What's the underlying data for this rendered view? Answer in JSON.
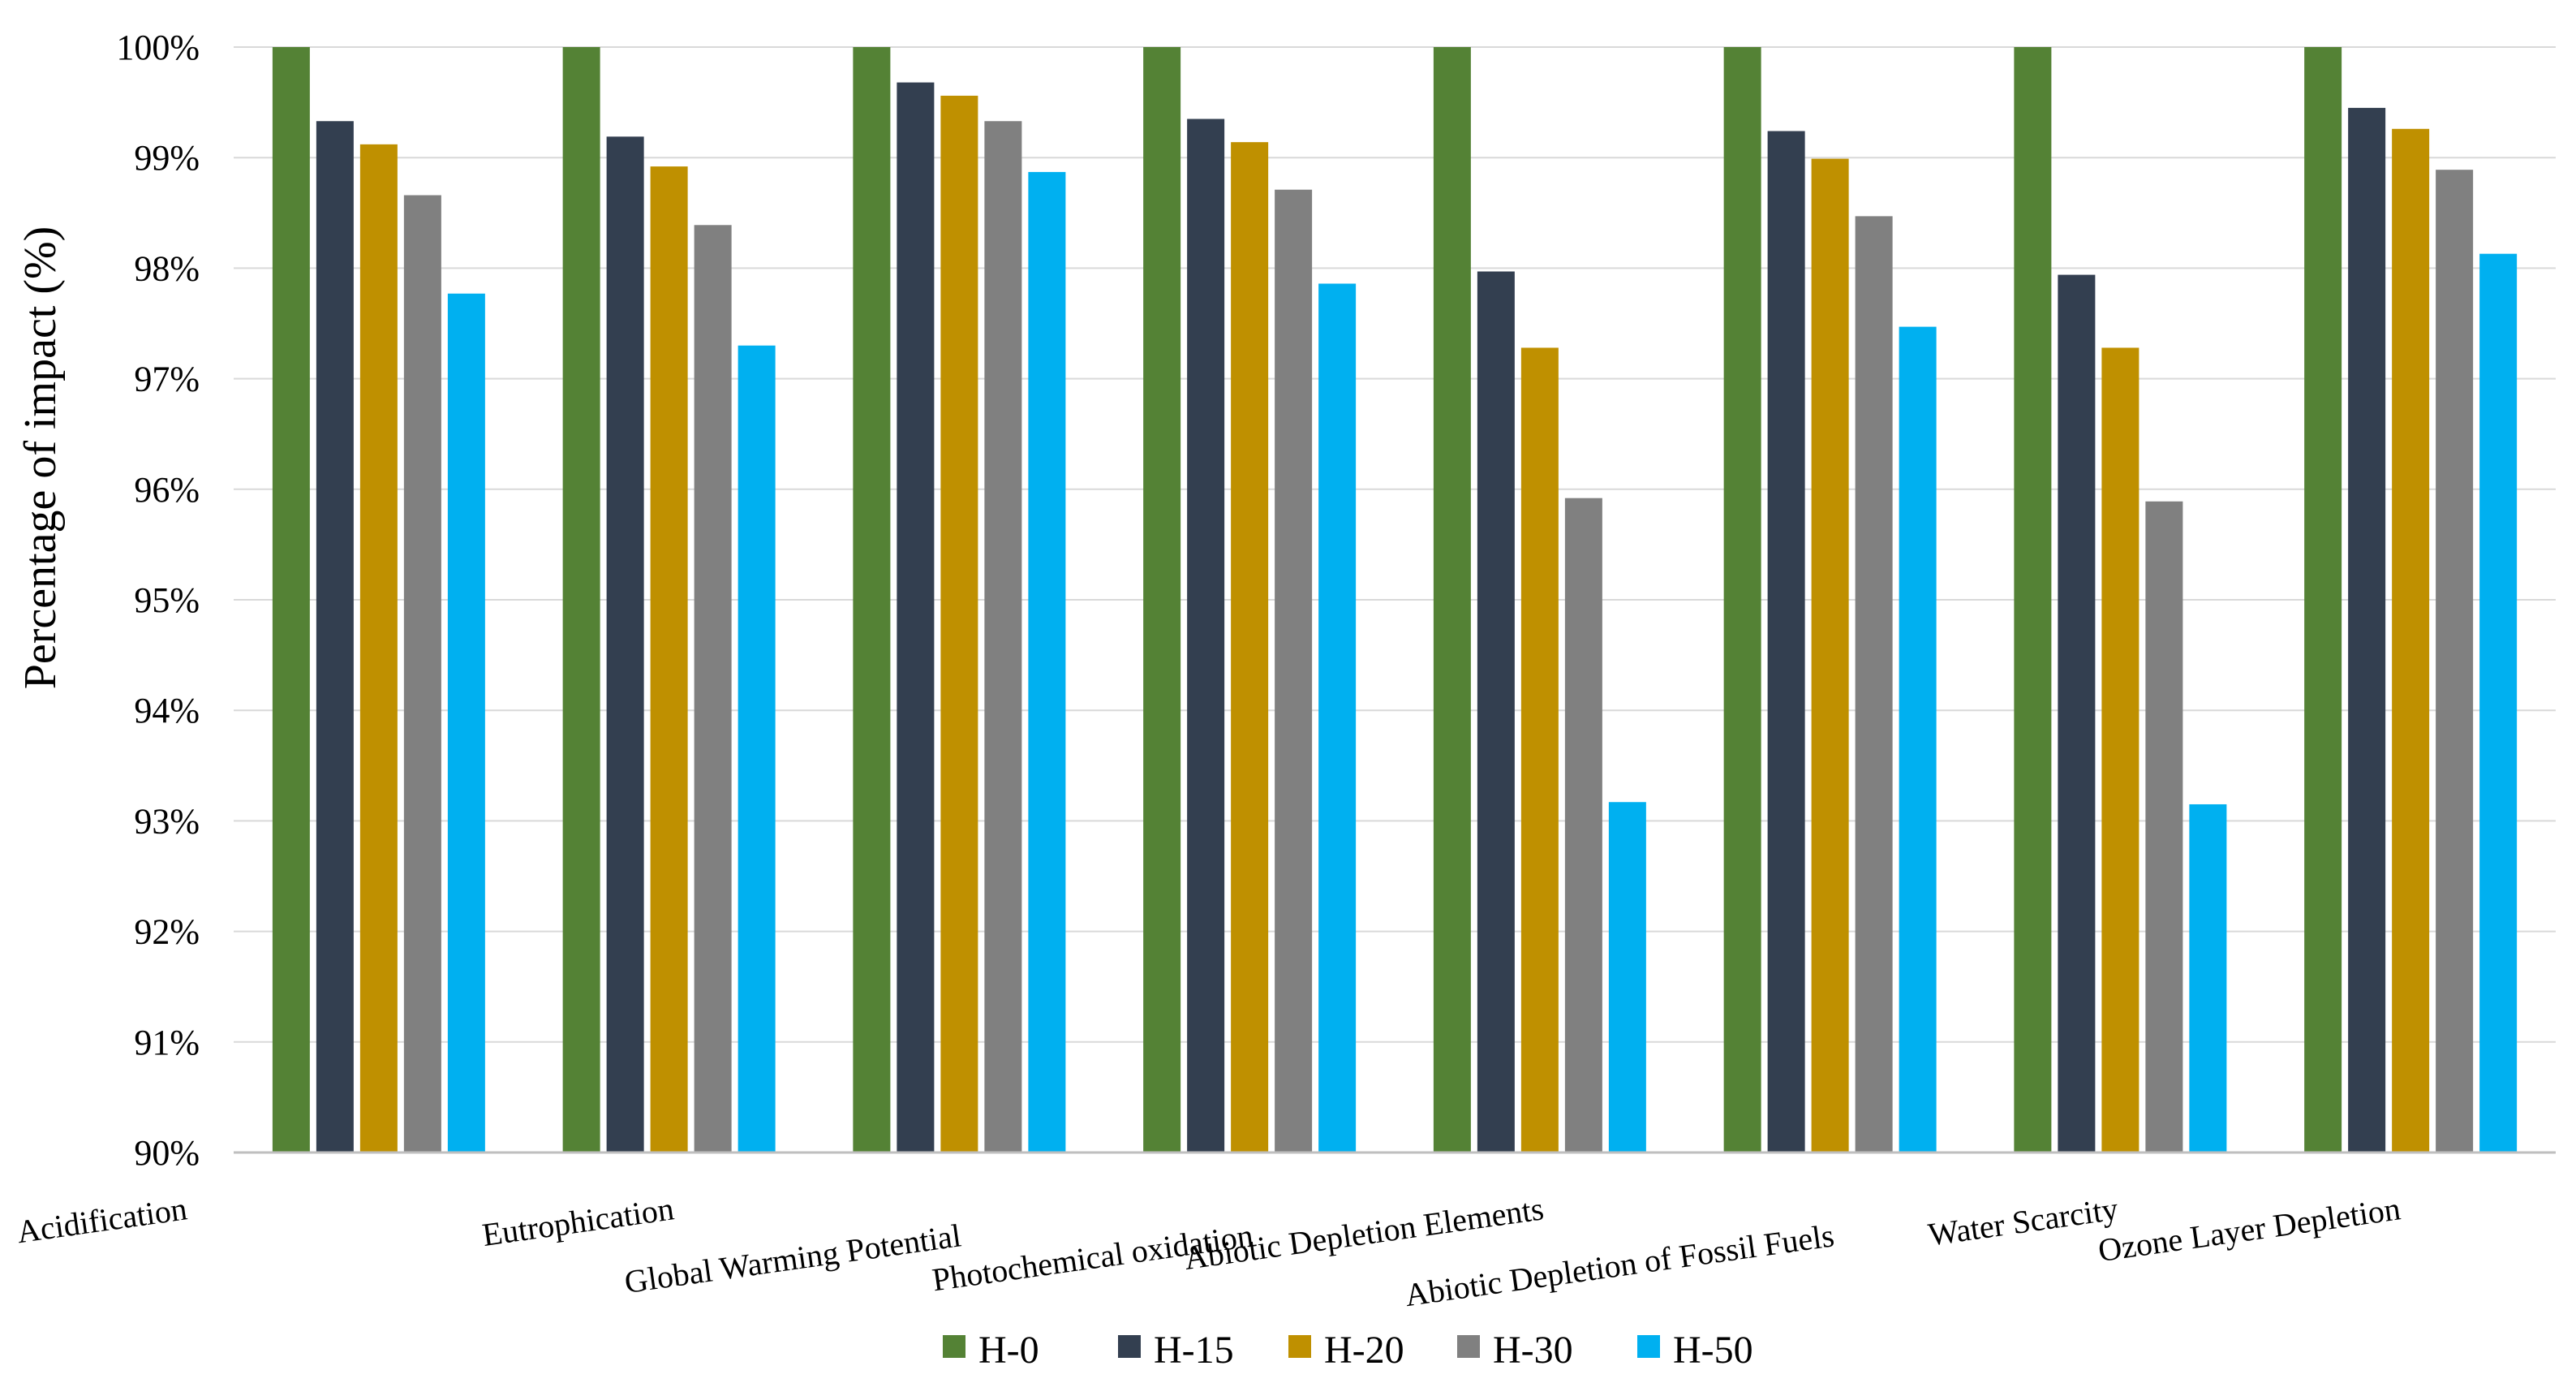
{
  "chart_data": {
    "type": "bar",
    "title": "",
    "xlabel": "",
    "ylabel": "Percentage of impact (%)",
    "ylim": [
      90,
      100
    ],
    "y_tick_values": [
      90,
      91,
      92,
      93,
      94,
      95,
      96,
      97,
      98,
      99,
      100
    ],
    "y_tick_labels": [
      "90%",
      "91%",
      "92%",
      "93%",
      "94%",
      "95%",
      "96%",
      "97%",
      "98%",
      "99%",
      "100%"
    ],
    "grid": true,
    "legend_position": "bottom",
    "categories": [
      "Acidification",
      "Eutrophication",
      "Global Warming Potential",
      "Photochemical oxidation",
      "Abiotic Depletion Elements",
      "Abiotic Depletion of Fossil Fuels",
      "Water Scarcity",
      "Ozone Layer Depletion"
    ],
    "series": [
      {
        "name": "H-0",
        "color": "#548235",
        "values": [
          100,
          100,
          100,
          100,
          100,
          100,
          100,
          100
        ]
      },
      {
        "name": "H-15",
        "color": "#333F50",
        "values": [
          99.33,
          99.19,
          99.68,
          99.35,
          97.97,
          99.24,
          97.94,
          99.45
        ]
      },
      {
        "name": "H-20",
        "color": "#BF9000",
        "values": [
          99.12,
          98.92,
          99.56,
          99.14,
          97.28,
          98.99,
          97.28,
          99.26
        ]
      },
      {
        "name": "H-30",
        "color": "#808080",
        "values": [
          98.66,
          98.39,
          99.33,
          98.71,
          95.92,
          98.47,
          95.89,
          98.89
        ]
      },
      {
        "name": "H-50",
        "color": "#00B0F0",
        "values": [
          97.77,
          97.3,
          98.87,
          97.86,
          93.17,
          97.47,
          93.15,
          98.13
        ]
      }
    ]
  }
}
